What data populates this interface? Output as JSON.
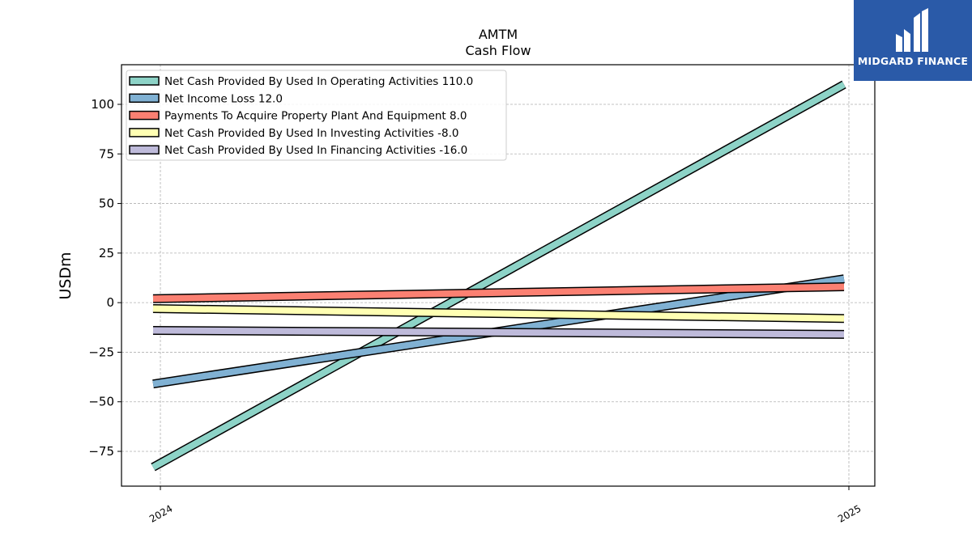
{
  "chart_data": {
    "type": "line",
    "title": "AMTM",
    "subtitle": "Cash Flow",
    "ylabel": "USDm",
    "xlabel": "",
    "categories": [
      "2024",
      "2025"
    ],
    "ylim": [
      -92,
      120
    ],
    "yticks": [
      -75,
      -50,
      -25,
      0,
      25,
      50,
      75,
      100
    ],
    "ytick_labels": [
      "−75",
      "−50",
      "−25",
      "0",
      "25",
      "50",
      "75",
      "100"
    ],
    "grid": true,
    "legend_position": "top-left",
    "series": [
      {
        "name": "Net Cash Provided By Used In Operating Activities",
        "legend_value": "110.0",
        "values": [
          -83,
          110
        ],
        "color": "#8dd3c7"
      },
      {
        "name": "Net Income Loss",
        "legend_value": "12.0",
        "values": [
          -41,
          12
        ],
        "color": "#80b1d3"
      },
      {
        "name": "Payments To Acquire Property Plant And Equipment",
        "legend_value": "8.0",
        "values": [
          2,
          8
        ],
        "color": "#fb8072"
      },
      {
        "name": "Net Cash Provided By Used In Investing Activities",
        "legend_value": "-8.0",
        "values": [
          -3,
          -8
        ],
        "color": "#ffffb3"
      },
      {
        "name": "Net Cash Provided By Used In Financing Activities",
        "legend_value": "-16.0",
        "values": [
          -14,
          -16
        ],
        "color": "#bebada"
      }
    ]
  },
  "logo": {
    "text": "MIDGARD FINANCE"
  }
}
